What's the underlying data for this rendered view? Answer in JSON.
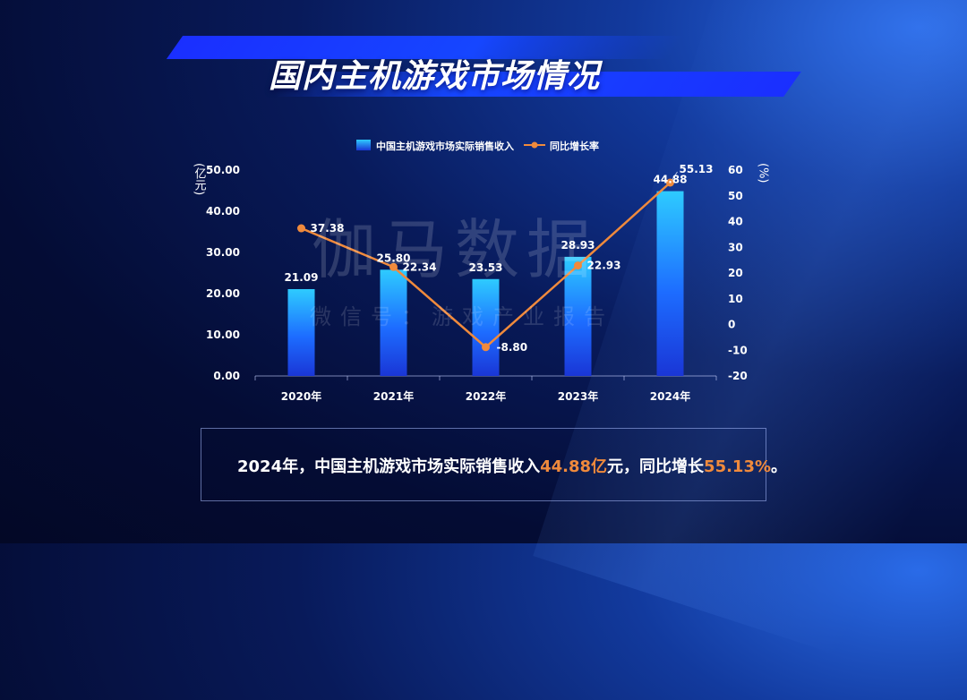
{
  "title": "国内主机游戏市场情况",
  "watermark": {
    "main": "伽马数据",
    "sub": "微信号：游戏产业报告"
  },
  "summary": {
    "prefix": "2024年，中国主机游戏市场实际销售收入",
    "revenue": "44.88亿",
    "middle": "元，同比增长",
    "growth": "55.13%",
    "suffix": "。"
  },
  "colors": {
    "bar": "#1f6bff",
    "line": "#f08a3c",
    "accent": "#1646ff"
  },
  "chart_data": {
    "type": "bar",
    "categories": [
      "2020年",
      "2021年",
      "2022年",
      "2023年",
      "2024年"
    ],
    "series": [
      {
        "name": "中国主机游戏市场实际销售收入",
        "type": "bar",
        "axis": "left",
        "values": [
          21.09,
          25.8,
          23.53,
          28.93,
          44.88
        ],
        "labels": [
          "21.09",
          "25.80",
          "23.53",
          "28.93",
          "44.88"
        ]
      },
      {
        "name": "同比增长率",
        "type": "line",
        "axis": "right",
        "values": [
          37.38,
          22.34,
          -8.8,
          22.93,
          55.13
        ],
        "labels": [
          "37.38",
          "22.34",
          "-8.80",
          "22.93",
          "55.13"
        ]
      }
    ],
    "ylabel": "亿元",
    "y2label": "%",
    "ylim": [
      0,
      50
    ],
    "y2lim": [
      -20,
      60
    ],
    "yticks": [
      "0.00",
      "10.00",
      "20.00",
      "30.00",
      "40.00",
      "50.00"
    ],
    "y2ticks": [
      "-20",
      "-10",
      "0",
      "10",
      "20",
      "30",
      "40",
      "50",
      "60"
    ],
    "legend": "top-center",
    "grid": false
  }
}
